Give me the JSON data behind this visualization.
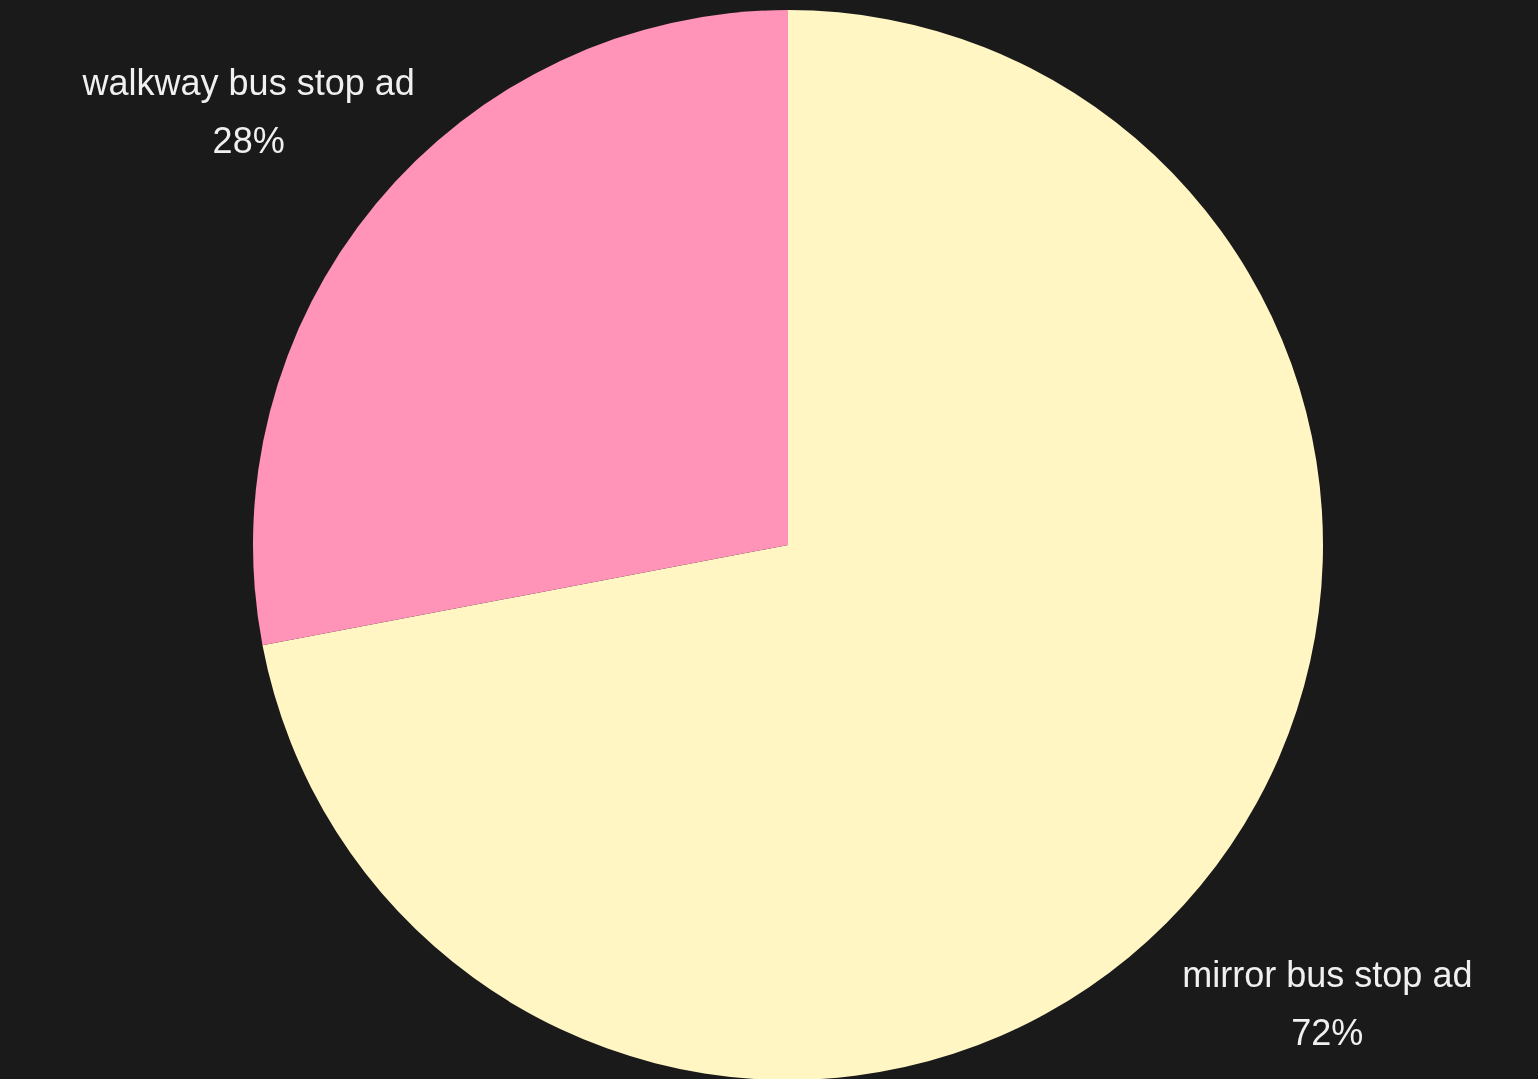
{
  "chart_data": {
    "type": "pie",
    "categories": [
      "mirror bus stop ad",
      "walkway bus stop ad"
    ],
    "values": [
      72,
      28
    ],
    "colors": [
      "#fff6c4",
      "#ff94b8"
    ],
    "value_labels": [
      "72%",
      "28%"
    ]
  }
}
